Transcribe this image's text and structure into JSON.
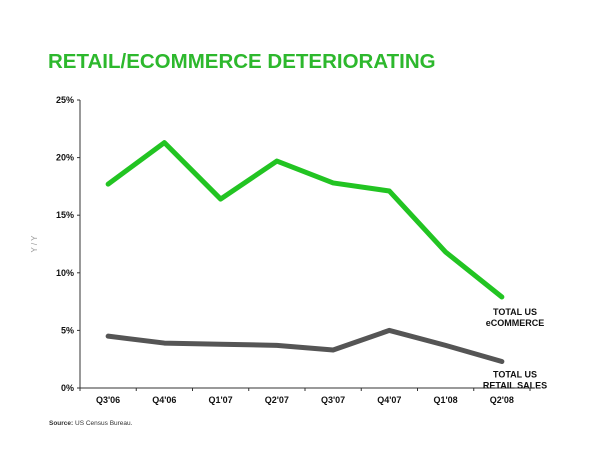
{
  "chart_data": {
    "type": "line",
    "title": "RETAIL/ECOMMERCE DETERIORATING",
    "ylabel": "Y / Y",
    "xlabel": "",
    "categories": [
      "Q3'06",
      "Q4'06",
      "Q1'07",
      "Q2'07",
      "Q3'07",
      "Q4'07",
      "Q1'08",
      "Q2'08"
    ],
    "ylim": [
      0,
      25
    ],
    "yticks": [
      "0%",
      "5%",
      "10%",
      "15%",
      "20%",
      "25%"
    ],
    "grid": false,
    "series": [
      {
        "name": "TOTAL US eCOMMERCE",
        "label_lines": [
          "TOTAL US",
          "eCOMMERCE"
        ],
        "color": "#22c422",
        "values": [
          17.7,
          21.3,
          16.4,
          19.7,
          17.8,
          17.1,
          11.8,
          7.9
        ]
      },
      {
        "name": "TOTAL US RETAIL SALES",
        "label_lines": [
          "TOTAL US",
          "RETAIL SALES"
        ],
        "color": "#555555",
        "values": [
          4.5,
          3.9,
          3.8,
          3.7,
          3.3,
          5.0,
          3.7,
          2.3
        ]
      }
    ],
    "source_label": "Source:",
    "source_text": "US Census Bureau."
  }
}
